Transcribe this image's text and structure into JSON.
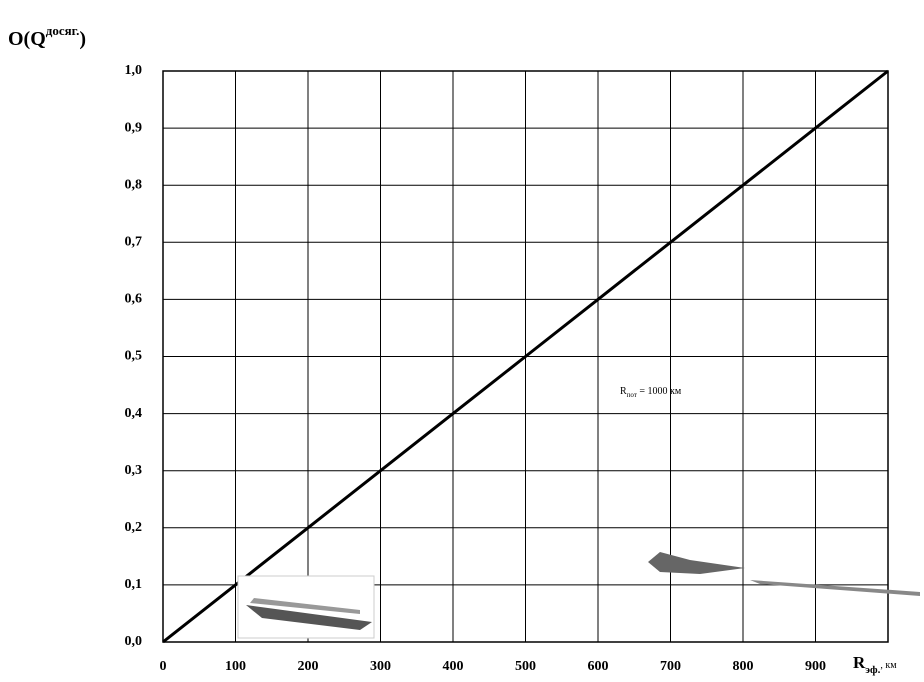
{
  "chart_data": {
    "type": "line",
    "y_label": {
      "text": "O(Q",
      "superscript": "досяг.",
      "suffix": ")"
    },
    "x_label": {
      "text": "R",
      "subscript": "эф.",
      "suffix": ", км"
    },
    "annotation": {
      "text": "R",
      "subscript": "пот",
      "suffix": " = 1000 км"
    },
    "x": [
      0,
      100,
      200,
      300,
      400,
      500,
      600,
      700,
      800,
      900,
      1000
    ],
    "series": [
      {
        "color": "#000000",
        "values": [
          0,
          0.1,
          0.2,
          0.3,
          0.4,
          0.5,
          0.6,
          0.7,
          0.8,
          0.9,
          1.0
        ]
      }
    ],
    "xlim": [
      0,
      1000
    ],
    "ylim": [
      0,
      1.0
    ],
    "xticks": [
      0,
      100,
      200,
      300,
      400,
      500,
      600,
      700,
      800,
      900
    ],
    "yticks": [
      {
        "value": 0,
        "label": "0,0"
      },
      {
        "value": 0.1,
        "label": "0,1"
      },
      {
        "value": 0.2,
        "label": "0,2"
      },
      {
        "value": 0.3,
        "label": "0,3"
      },
      {
        "value": 0.4,
        "label": "0,4"
      },
      {
        "value": 0.5,
        "label": "0,5"
      },
      {
        "value": 0.6,
        "label": "0,6"
      },
      {
        "value": 0.7,
        "label": "0,7"
      },
      {
        "value": 0.8,
        "label": "0,8"
      },
      {
        "value": 0.9,
        "label": "0,9"
      },
      {
        "value": 1.0,
        "label": "1,0"
      }
    ],
    "grid": true
  }
}
